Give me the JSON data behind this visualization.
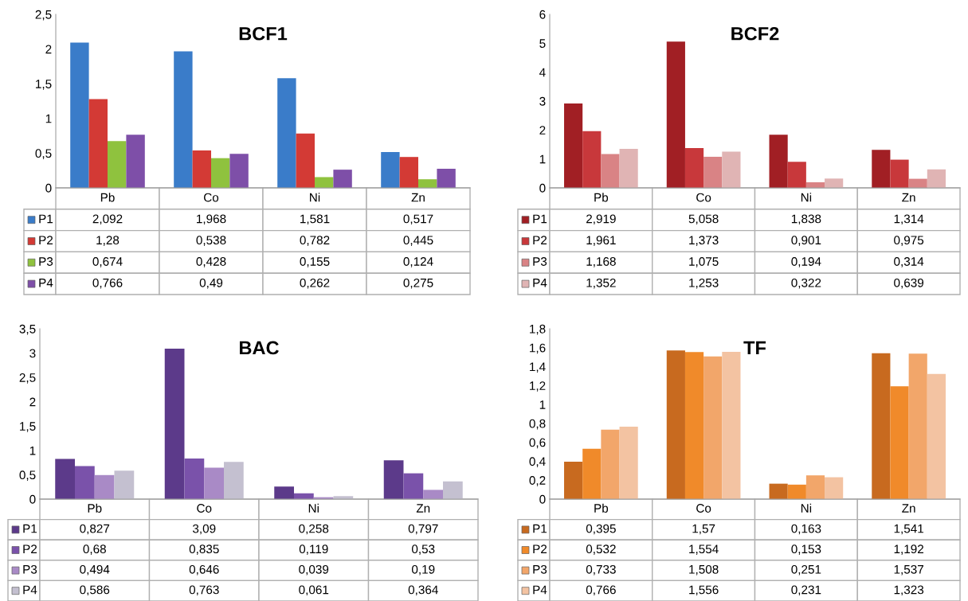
{
  "chart_data": [
    {
      "type": "bar",
      "title": "BCF1",
      "legend": "bottom left",
      "categories": [
        "Pb",
        "Co",
        "Ni",
        "Zn"
      ],
      "ylim": [
        0,
        2.5
      ],
      "yticks": [
        0,
        {
          "value": 0.5,
          "label": "0,5"
        },
        1,
        {
          "value": 1.5,
          "label": "1,5"
        },
        2,
        {
          "value": 2.5,
          "label": "2,5"
        }
      ],
      "series": [
        {
          "name": "P1",
          "color": "#3a7cc9",
          "values": [
            2.092,
            1.968,
            1.581,
            0.517
          ],
          "value_labels": [
            "2,092",
            "1,968",
            "1,581",
            "0,517"
          ]
        },
        {
          "name": "P2",
          "color": "#d33a35",
          "values": [
            1.28,
            0.538,
            0.782,
            0.445
          ],
          "value_labels": [
            "1,28",
            "0,538",
            "0,782",
            "0,445"
          ]
        },
        {
          "name": "P3",
          "color": "#8fc23e",
          "values": [
            0.674,
            0.428,
            0.155,
            0.124
          ],
          "value_labels": [
            "0,674",
            "0,428",
            "0,155",
            "0,124"
          ]
        },
        {
          "name": "P4",
          "color": "#7e4fa8",
          "values": [
            0.766,
            0.49,
            0.262,
            0.275
          ],
          "value_labels": [
            "0,766",
            "0,49",
            "0,262",
            "0,275"
          ]
        }
      ]
    },
    {
      "type": "bar",
      "title": "BCF2",
      "legend": "bottom left",
      "categories": [
        "Pb",
        "Co",
        "Ni",
        "Zn"
      ],
      "ylim": [
        0,
        6
      ],
      "yticks": [
        0,
        1,
        2,
        3,
        4,
        5,
        6
      ],
      "series": [
        {
          "name": "P1",
          "color": "#a11f24",
          "values": [
            2.919,
            5.058,
            1.838,
            1.314
          ],
          "value_labels": [
            "2,919",
            "5,058",
            "1,838",
            "1,314"
          ]
        },
        {
          "name": "P2",
          "color": "#c8383b",
          "values": [
            1.961,
            1.373,
            0.901,
            0.975
          ],
          "value_labels": [
            "1,961",
            "1,373",
            "0,901",
            "0,975"
          ]
        },
        {
          "name": "P3",
          "color": "#d98385",
          "values": [
            1.168,
            1.075,
            0.194,
            0.314
          ],
          "value_labels": [
            "1,168",
            "1,075",
            "0,194",
            "0,314"
          ]
        },
        {
          "name": "P4",
          "color": "#e0b4b4",
          "values": [
            1.352,
            1.253,
            0.322,
            0.639
          ],
          "value_labels": [
            "1,352",
            "1,253",
            "0,322",
            "0,639"
          ]
        }
      ]
    },
    {
      "type": "bar",
      "title": "BAC",
      "legend": "bottom left",
      "categories": [
        "Pb",
        "Co",
        "Ni",
        "Zn"
      ],
      "ylim": [
        0,
        3.5
      ],
      "yticks": [
        0,
        {
          "value": 0.5,
          "label": "0,5"
        },
        1,
        {
          "value": 1.5,
          "label": "1,5"
        },
        2,
        {
          "value": 2.5,
          "label": "2,5"
        },
        3,
        {
          "value": 3.5,
          "label": "3,5"
        }
      ],
      "series": [
        {
          "name": "P1",
          "color": "#5c3a8a",
          "values": [
            0.827,
            3.09,
            0.258,
            0.797
          ],
          "value_labels": [
            "0,827",
            "3,09",
            "0,258",
            "0,797"
          ]
        },
        {
          "name": "P2",
          "color": "#7a52aa",
          "values": [
            0.68,
            0.835,
            0.119,
            0.53
          ],
          "value_labels": [
            "0,68",
            "0,835",
            "0,119",
            "0,53"
          ]
        },
        {
          "name": "P3",
          "color": "#a98ac6",
          "values": [
            0.494,
            0.646,
            0.039,
            0.19
          ],
          "value_labels": [
            "0,494",
            "0,646",
            "0,039",
            "0,19"
          ]
        },
        {
          "name": "P4",
          "color": "#c4c0d0",
          "values": [
            0.586,
            0.763,
            0.061,
            0.364
          ],
          "value_labels": [
            "0,586",
            "0,763",
            "0,061",
            "0,364"
          ]
        }
      ]
    },
    {
      "type": "bar",
      "title": "TF",
      "legend": "bottom left",
      "categories": [
        "Pb",
        "Co",
        "Ni",
        "Zn"
      ],
      "ylim": [
        0,
        1.8
      ],
      "yticks": [
        0,
        {
          "value": 0.2,
          "label": "0,2"
        },
        {
          "value": 0.4,
          "label": "0,4"
        },
        {
          "value": 0.6,
          "label": "0,6"
        },
        {
          "value": 0.8,
          "label": "0,8"
        },
        1,
        {
          "value": 1.2,
          "label": "1,2"
        },
        {
          "value": 1.4,
          "label": "1,4"
        },
        {
          "value": 1.6,
          "label": "1,6"
        },
        {
          "value": 1.8,
          "label": "1,8"
        }
      ],
      "series": [
        {
          "name": "P1",
          "color": "#c86a1f",
          "values": [
            0.395,
            1.57,
            0.163,
            1.541
          ],
          "value_labels": [
            "0,395",
            "1,57",
            "0,163",
            "1,541"
          ]
        },
        {
          "name": "P2",
          "color": "#f08a2a",
          "values": [
            0.532,
            1.554,
            0.153,
            1.192
          ],
          "value_labels": [
            "0,532",
            "1,554",
            "0,153",
            "1,192"
          ]
        },
        {
          "name": "P3",
          "color": "#f2a66a",
          "values": [
            0.733,
            1.508,
            0.251,
            1.537
          ],
          "value_labels": [
            "0,733",
            "1,508",
            "0,251",
            "1,537"
          ]
        },
        {
          "name": "P4",
          "color": "#f3c3a2",
          "values": [
            0.766,
            1.556,
            0.231,
            1.323
          ],
          "value_labels": [
            "0,766",
            "1,556",
            "0,231",
            "1,323"
          ]
        }
      ]
    }
  ]
}
